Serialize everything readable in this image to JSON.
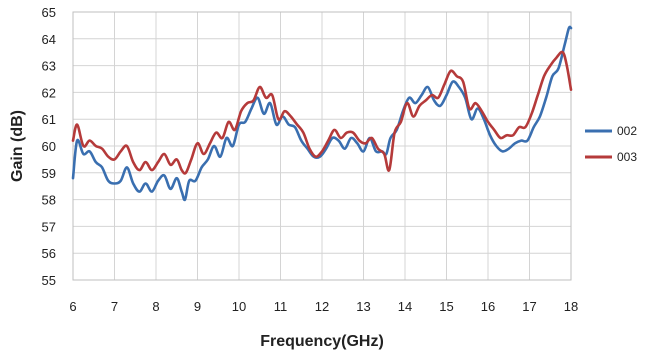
{
  "chart_data": {
    "type": "line",
    "title": "",
    "xlabel": "Frequency(GHz)",
    "ylabel": "Gain (dB)",
    "xlim": [
      6,
      18
    ],
    "ylim": [
      55,
      65
    ],
    "x_ticks": [
      6,
      7,
      8,
      9,
      10,
      11,
      12,
      13,
      14,
      15,
      16,
      17,
      18
    ],
    "y_ticks": [
      55,
      56,
      57,
      58,
      59,
      60,
      61,
      62,
      63,
      64,
      65
    ],
    "grid": true,
    "legend_position": "right",
    "series": [
      {
        "name": "002",
        "color": "#3a6fb0",
        "points": [
          [
            6.0,
            58.8
          ],
          [
            6.1,
            60.2
          ],
          [
            6.25,
            59.7
          ],
          [
            6.4,
            59.8
          ],
          [
            6.55,
            59.4
          ],
          [
            6.7,
            59.2
          ],
          [
            6.85,
            58.7
          ],
          [
            7.0,
            58.6
          ],
          [
            7.15,
            58.7
          ],
          [
            7.3,
            59.2
          ],
          [
            7.45,
            58.6
          ],
          [
            7.6,
            58.3
          ],
          [
            7.75,
            58.6
          ],
          [
            7.9,
            58.3
          ],
          [
            8.05,
            58.7
          ],
          [
            8.2,
            58.9
          ],
          [
            8.35,
            58.4
          ],
          [
            8.5,
            58.8
          ],
          [
            8.62,
            58.3
          ],
          [
            8.7,
            58.0
          ],
          [
            8.8,
            58.7
          ],
          [
            8.95,
            58.7
          ],
          [
            9.1,
            59.2
          ],
          [
            9.25,
            59.5
          ],
          [
            9.4,
            60.0
          ],
          [
            9.55,
            59.6
          ],
          [
            9.7,
            60.3
          ],
          [
            9.85,
            60.0
          ],
          [
            10.0,
            60.8
          ],
          [
            10.15,
            60.9
          ],
          [
            10.3,
            61.4
          ],
          [
            10.45,
            61.8
          ],
          [
            10.6,
            61.2
          ],
          [
            10.75,
            61.6
          ],
          [
            10.9,
            60.8
          ],
          [
            11.05,
            61.1
          ],
          [
            11.2,
            60.8
          ],
          [
            11.35,
            60.7
          ],
          [
            11.5,
            60.2
          ],
          [
            11.65,
            59.9
          ],
          [
            11.8,
            59.6
          ],
          [
            11.95,
            59.6
          ],
          [
            12.1,
            59.9
          ],
          [
            12.25,
            60.3
          ],
          [
            12.4,
            60.2
          ],
          [
            12.55,
            59.9
          ],
          [
            12.7,
            60.3
          ],
          [
            12.85,
            60.1
          ],
          [
            13.0,
            59.8
          ],
          [
            13.15,
            60.3
          ],
          [
            13.3,
            59.8
          ],
          [
            13.45,
            59.8
          ],
          [
            13.55,
            59.7
          ],
          [
            13.65,
            60.3
          ],
          [
            13.8,
            60.6
          ],
          [
            13.95,
            61.3
          ],
          [
            14.1,
            61.8
          ],
          [
            14.25,
            61.6
          ],
          [
            14.4,
            61.9
          ],
          [
            14.55,
            62.2
          ],
          [
            14.7,
            61.7
          ],
          [
            14.85,
            61.5
          ],
          [
            15.0,
            61.9
          ],
          [
            15.15,
            62.4
          ],
          [
            15.3,
            62.2
          ],
          [
            15.45,
            61.8
          ],
          [
            15.6,
            61.0
          ],
          [
            15.75,
            61.4
          ],
          [
            15.9,
            61.0
          ],
          [
            16.05,
            60.4
          ],
          [
            16.2,
            60.0
          ],
          [
            16.35,
            59.8
          ],
          [
            16.5,
            59.9
          ],
          [
            16.65,
            60.1
          ],
          [
            16.8,
            60.2
          ],
          [
            16.95,
            60.2
          ],
          [
            17.1,
            60.7
          ],
          [
            17.25,
            61.1
          ],
          [
            17.4,
            61.8
          ],
          [
            17.55,
            62.6
          ],
          [
            17.7,
            62.9
          ],
          [
            17.85,
            63.8
          ],
          [
            17.95,
            64.4
          ],
          [
            18.0,
            64.4
          ]
        ]
      },
      {
        "name": "003",
        "color": "#b53a3a",
        "points": [
          [
            6.0,
            60.2
          ],
          [
            6.1,
            60.8
          ],
          [
            6.25,
            60.0
          ],
          [
            6.4,
            60.2
          ],
          [
            6.55,
            60.0
          ],
          [
            6.7,
            59.9
          ],
          [
            6.85,
            59.6
          ],
          [
            7.0,
            59.5
          ],
          [
            7.15,
            59.8
          ],
          [
            7.3,
            60.0
          ],
          [
            7.45,
            59.4
          ],
          [
            7.6,
            59.1
          ],
          [
            7.75,
            59.4
          ],
          [
            7.9,
            59.1
          ],
          [
            8.05,
            59.4
          ],
          [
            8.2,
            59.7
          ],
          [
            8.35,
            59.3
          ],
          [
            8.5,
            59.5
          ],
          [
            8.62,
            59.1
          ],
          [
            8.72,
            59.0
          ],
          [
            8.85,
            59.5
          ],
          [
            9.0,
            60.1
          ],
          [
            9.15,
            59.7
          ],
          [
            9.3,
            60.1
          ],
          [
            9.45,
            60.5
          ],
          [
            9.6,
            60.3
          ],
          [
            9.75,
            60.9
          ],
          [
            9.9,
            60.6
          ],
          [
            10.05,
            61.3
          ],
          [
            10.2,
            61.6
          ],
          [
            10.35,
            61.7
          ],
          [
            10.5,
            62.2
          ],
          [
            10.65,
            61.8
          ],
          [
            10.8,
            61.9
          ],
          [
            10.95,
            61.0
          ],
          [
            11.1,
            61.3
          ],
          [
            11.25,
            61.1
          ],
          [
            11.4,
            60.8
          ],
          [
            11.55,
            60.5
          ],
          [
            11.7,
            59.9
          ],
          [
            11.85,
            59.6
          ],
          [
            12.0,
            59.8
          ],
          [
            12.15,
            60.2
          ],
          [
            12.3,
            60.6
          ],
          [
            12.45,
            60.3
          ],
          [
            12.6,
            60.5
          ],
          [
            12.75,
            60.5
          ],
          [
            12.9,
            60.2
          ],
          [
            13.05,
            60.1
          ],
          [
            13.2,
            60.3
          ],
          [
            13.35,
            59.9
          ],
          [
            13.5,
            59.7
          ],
          [
            13.62,
            59.1
          ],
          [
            13.75,
            60.5
          ],
          [
            13.9,
            60.9
          ],
          [
            14.05,
            61.6
          ],
          [
            14.2,
            61.1
          ],
          [
            14.35,
            61.5
          ],
          [
            14.5,
            61.7
          ],
          [
            14.65,
            61.9
          ],
          [
            14.8,
            61.8
          ],
          [
            14.95,
            62.3
          ],
          [
            15.1,
            62.8
          ],
          [
            15.25,
            62.6
          ],
          [
            15.4,
            62.4
          ],
          [
            15.55,
            61.4
          ],
          [
            15.7,
            61.6
          ],
          [
            15.85,
            61.3
          ],
          [
            16.0,
            60.9
          ],
          [
            16.15,
            60.6
          ],
          [
            16.3,
            60.3
          ],
          [
            16.45,
            60.4
          ],
          [
            16.6,
            60.4
          ],
          [
            16.75,
            60.7
          ],
          [
            16.9,
            60.7
          ],
          [
            17.05,
            61.2
          ],
          [
            17.2,
            61.9
          ],
          [
            17.35,
            62.6
          ],
          [
            17.5,
            63.0
          ],
          [
            17.65,
            63.3
          ],
          [
            17.8,
            63.5
          ],
          [
            17.9,
            63.0
          ],
          [
            18.0,
            62.1
          ]
        ]
      }
    ]
  }
}
